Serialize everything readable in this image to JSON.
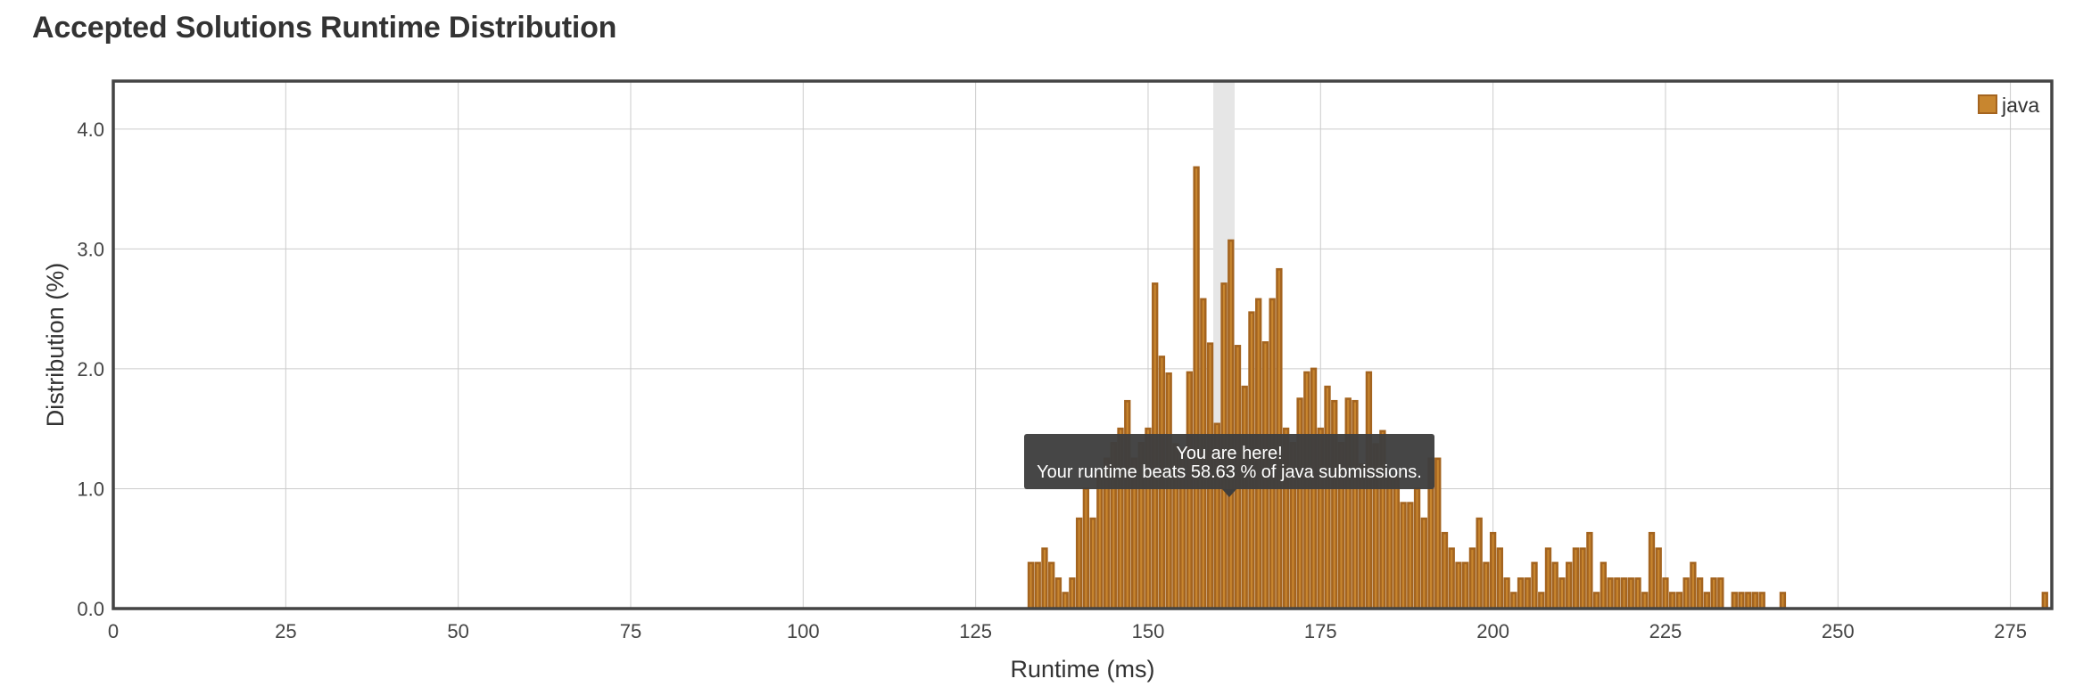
{
  "title": "Accepted Solutions Runtime Distribution",
  "colors": {
    "bar_fill": "#c8862f",
    "bar_stroke": "#a4641f",
    "highlight": "#e6e6e6",
    "tooltip_bg": "#3e3e3e",
    "grid": "#cccccc",
    "frame": "#444444"
  },
  "chart_data": {
    "type": "bar",
    "xlabel": "Runtime (ms)",
    "ylabel": "Distribution (%)",
    "xlim": [
      0,
      281
    ],
    "ylim": [
      0,
      4.4
    ],
    "x_ticks": [
      0,
      25,
      50,
      75,
      100,
      125,
      150,
      175,
      200,
      225,
      250,
      275
    ],
    "y_ticks": [
      "0.0",
      "1.0",
      "2.0",
      "3.0",
      "4.0"
    ],
    "grid": true,
    "legend": {
      "label": "java",
      "position": "top-right"
    },
    "highlight_x": 161,
    "tooltip": {
      "line1": "You are here!",
      "line2": "Your runtime beats 58.63 % of java submissions."
    },
    "series": [
      {
        "name": "java",
        "x": [
          133,
          134,
          135,
          136,
          137,
          138,
          139,
          140,
          141,
          142,
          143,
          144,
          145,
          146,
          147,
          148,
          149,
          150,
          151,
          152,
          153,
          154,
          155,
          156,
          157,
          158,
          159,
          160,
          161,
          162,
          163,
          164,
          165,
          166,
          167,
          168,
          169,
          170,
          171,
          172,
          173,
          174,
          175,
          176,
          177,
          178,
          179,
          180,
          181,
          182,
          183,
          184,
          185,
          186,
          187,
          188,
          189,
          190,
          191,
          192,
          193,
          194,
          195,
          196,
          197,
          198,
          199,
          200,
          201,
          202,
          203,
          204,
          205,
          206,
          207,
          208,
          209,
          210,
          211,
          212,
          213,
          214,
          215,
          216,
          217,
          218,
          219,
          220,
          221,
          222,
          223,
          224,
          225,
          226,
          227,
          228,
          229,
          230,
          231,
          232,
          233,
          235,
          236,
          237,
          238,
          239,
          242,
          280
        ],
        "values": [
          0.38,
          0.38,
          0.5,
          0.38,
          0.25,
          0.13,
          0.25,
          0.75,
          1.0,
          0.75,
          1.13,
          1.25,
          1.38,
          1.5,
          1.73,
          1.25,
          1.38,
          1.5,
          2.71,
          2.1,
          1.96,
          1.37,
          1.33,
          1.97,
          3.68,
          2.58,
          2.21,
          1.54,
          2.71,
          3.07,
          2.19,
          1.85,
          2.47,
          2.58,
          2.22,
          2.58,
          2.83,
          1.5,
          1.38,
          1.75,
          1.97,
          2.0,
          1.5,
          1.85,
          1.73,
          1.38,
          1.75,
          1.73,
          1.2,
          1.97,
          1.37,
          1.48,
          1.1,
          1.1,
          0.88,
          0.88,
          1.0,
          0.75,
          1.25,
          1.25,
          0.63,
          0.5,
          0.38,
          0.38,
          0.5,
          0.75,
          0.38,
          0.63,
          0.5,
          0.25,
          0.13,
          0.25,
          0.25,
          0.38,
          0.13,
          0.5,
          0.38,
          0.25,
          0.38,
          0.5,
          0.5,
          0.63,
          0.13,
          0.38,
          0.25,
          0.25,
          0.25,
          0.25,
          0.25,
          0.13,
          0.63,
          0.5,
          0.25,
          0.13,
          0.13,
          0.25,
          0.38,
          0.25,
          0.13,
          0.25,
          0.25,
          0.13,
          0.13,
          0.13,
          0.13,
          0.13,
          0.13,
          0.13
        ]
      }
    ]
  }
}
